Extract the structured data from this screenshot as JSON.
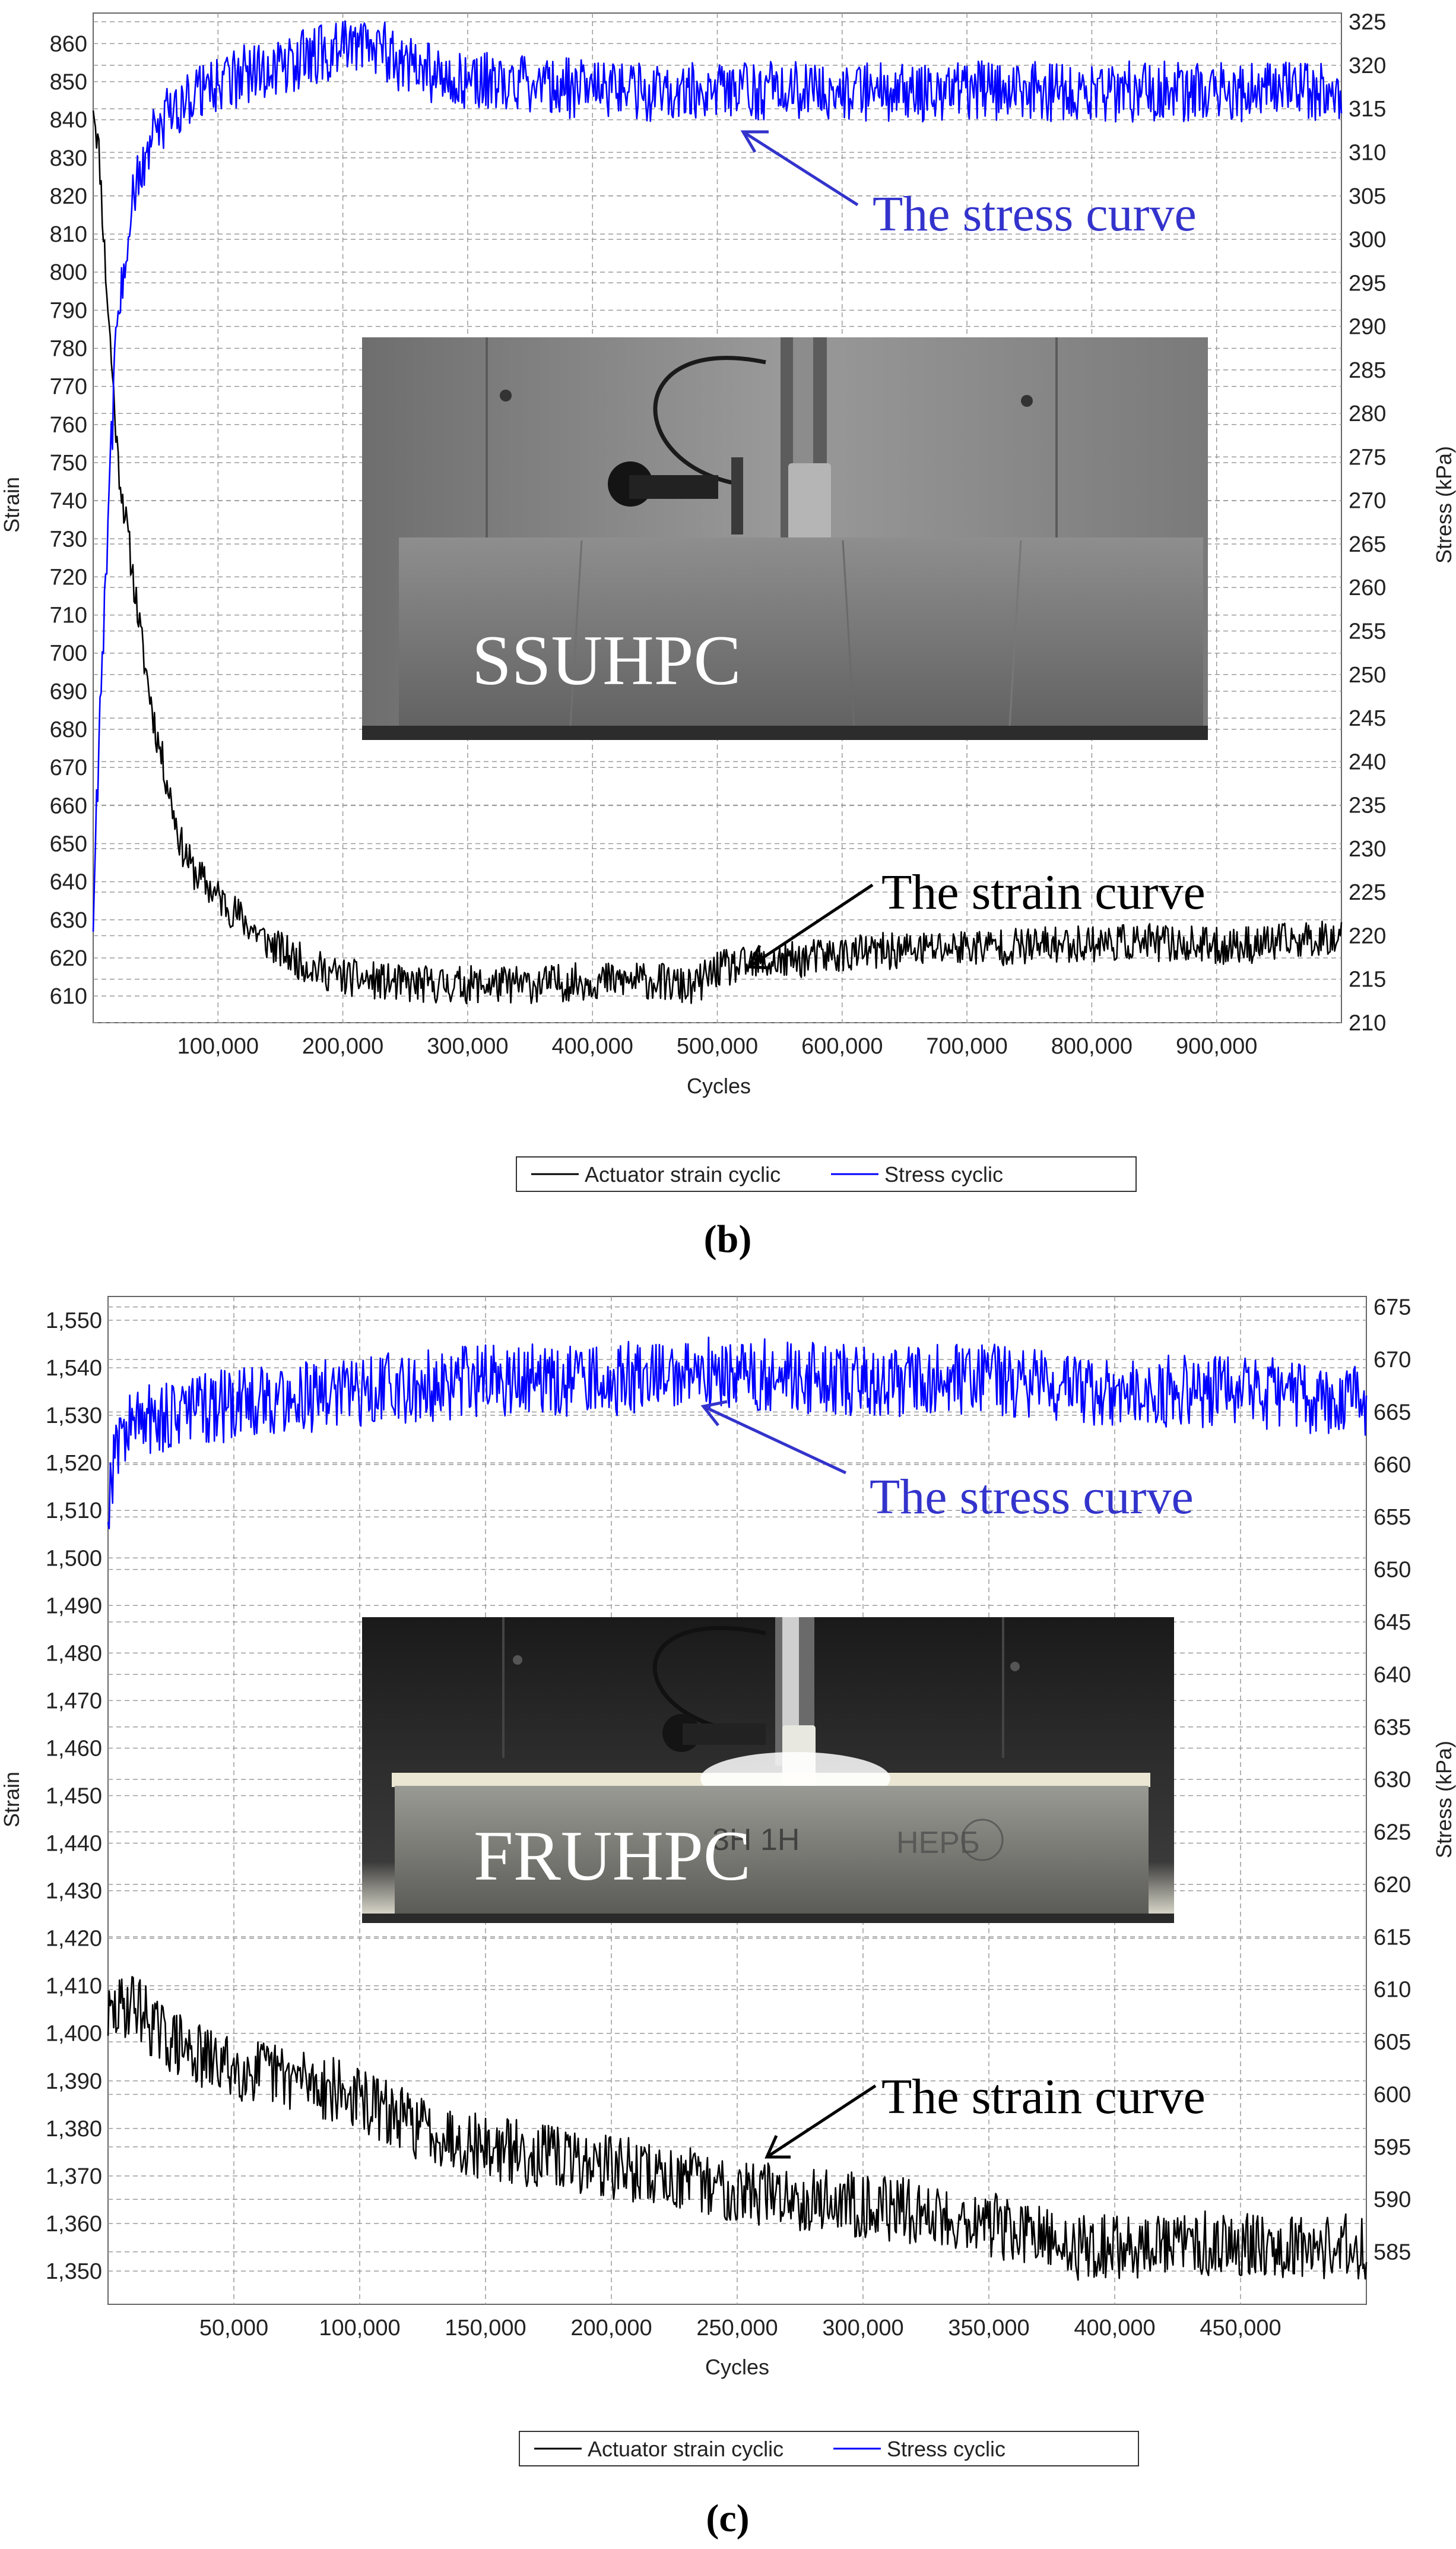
{
  "chart_data": [
    {
      "type": "line",
      "caption": "(b)",
      "xlabel": "Cycles",
      "ylabel_left": "Strain",
      "ylabel_right": "Stress (kPa)",
      "xlim": [
        0,
        1000000
      ],
      "ylim_left": [
        603,
        868
      ],
      "ylim_right": [
        210,
        326
      ],
      "x_ticks": [
        "100,000",
        "200,000",
        "300,000",
        "400,000",
        "500,000",
        "600,000",
        "700,000",
        "800,000",
        "900,000"
      ],
      "x_tick_values": [
        100000,
        200000,
        300000,
        400000,
        500000,
        600000,
        700000,
        800000,
        900000
      ],
      "y_left_ticks": [
        610,
        620,
        630,
        640,
        650,
        660,
        670,
        680,
        690,
        700,
        710,
        720,
        730,
        740,
        750,
        760,
        770,
        780,
        790,
        800,
        810,
        820,
        830,
        840,
        850,
        860
      ],
      "y_right_ticks": [
        210,
        215,
        220,
        225,
        230,
        235,
        240,
        245,
        250,
        255,
        260,
        265,
        270,
        275,
        280,
        285,
        290,
        295,
        300,
        305,
        310,
        315,
        320,
        325
      ],
      "grid": true,
      "legend": [
        "Actuator strain cyclic",
        "Stress cyclic"
      ],
      "legend_position": "bottom",
      "photo_label": "SSUHPC",
      "annotations": [
        {
          "text": "The stress curve",
          "color": "#3333cc"
        },
        {
          "text": "The strain curve",
          "color": "#000000"
        }
      ],
      "series": [
        {
          "name": "Actuator strain cyclic",
          "axis": "left",
          "color": "#000000",
          "x": [
            0,
            5000,
            10000,
            15000,
            20000,
            30000,
            40000,
            50000,
            60000,
            70000,
            80000,
            100000,
            120000,
            140000,
            160000,
            180000,
            200000,
            250000,
            300000,
            350000,
            400000,
            450000,
            480000,
            500000,
            550000,
            600000,
            650000,
            700000,
            750000,
            800000,
            850000,
            900000,
            950000,
            1000000
          ],
          "y": [
            845,
            830,
            800,
            775,
            750,
            725,
            700,
            680,
            665,
            650,
            643,
            636,
            630,
            624,
            620,
            617,
            615,
            613,
            613,
            613,
            614,
            614,
            612,
            617,
            619,
            621,
            622,
            623,
            623,
            624,
            624,
            623,
            624,
            626
          ],
          "noise": 5
        },
        {
          "name": "Stress cyclic",
          "axis": "right",
          "color": "#0000ff",
          "x": [
            0,
            5000,
            10000,
            15000,
            20000,
            30000,
            40000,
            50000,
            60000,
            80000,
            100000,
            150000,
            200000,
            220000,
            250000,
            300000,
            350000,
            400000,
            450000,
            500000,
            600000,
            700000,
            800000,
            900000,
            1000000
          ],
          "y": [
            222,
            245,
            262,
            278,
            292,
            303,
            309,
            312,
            314,
            317,
            318,
            320,
            322,
            323,
            320,
            318,
            318,
            317,
            317,
            317,
            317,
            317,
            317,
            317,
            317
          ],
          "noise": 3.5
        }
      ]
    },
    {
      "type": "line",
      "caption": "(c)",
      "xlabel": "Cycles",
      "ylabel_left": "Strain",
      "ylabel_right": "Stress (kPa)",
      "xlim": [
        0,
        500000
      ],
      "ylim_left": [
        1343,
        1555
      ],
      "ylim_right": [
        580,
        676
      ],
      "x_ticks": [
        "50,000",
        "100,000",
        "150,000",
        "200,000",
        "250,000",
        "300,000",
        "350,000",
        "400,000",
        "450,000"
      ],
      "x_tick_values": [
        50000,
        100000,
        150000,
        200000,
        250000,
        300000,
        350000,
        400000,
        450000
      ],
      "y_left_ticks": [
        "1,350",
        "1,360",
        "1,370",
        "1,380",
        "1,390",
        "1,400",
        "1,410",
        "1,420",
        "1,430",
        "1,440",
        "1,450",
        "1,460",
        "1,470",
        "1,480",
        "1,490",
        "1,500",
        "1,510",
        "1,520",
        "1,530",
        "1,540",
        "1,550"
      ],
      "y_left_tick_values": [
        1350,
        1360,
        1370,
        1380,
        1390,
        1400,
        1410,
        1420,
        1430,
        1440,
        1450,
        1460,
        1470,
        1480,
        1490,
        1500,
        1510,
        1520,
        1530,
        1540,
        1550
      ],
      "y_right_ticks": [
        585,
        590,
        595,
        600,
        605,
        610,
        615,
        620,
        625,
        630,
        635,
        640,
        645,
        650,
        655,
        660,
        665,
        670,
        675
      ],
      "grid": true,
      "legend": [
        "Actuator strain cyclic",
        "Stress cyclic"
      ],
      "legend_position": "bottom",
      "photo_label": "FRUHPC",
      "annotations": [
        {
          "text": "The stress curve",
          "color": "#3333cc"
        },
        {
          "text": "The strain curve",
          "color": "#000000"
        }
      ],
      "series": [
        {
          "name": "Actuator strain cyclic",
          "axis": "left",
          "color": "#000000",
          "x": [
            0,
            10000,
            20000,
            40000,
            60000,
            80000,
            100000,
            120000,
            150000,
            200000,
            250000,
            300000,
            350000,
            380000,
            400000,
            450000,
            500000
          ],
          "y": [
            1403,
            1407,
            1400,
            1394,
            1392,
            1390,
            1386,
            1381,
            1376,
            1372,
            1367,
            1364,
            1360,
            1355,
            1355,
            1356,
            1355
          ],
          "noise": 7
        },
        {
          "name": "Stress cyclic",
          "axis": "right",
          "color": "#0000ff",
          "x": [
            0,
            3000,
            10000,
            30000,
            60000,
            100000,
            150000,
            200000,
            230000,
            300000,
            350000,
            400000,
            450000,
            500000
          ],
          "y": [
            656,
            662,
            664,
            665,
            666,
            667,
            668,
            668,
            669,
            668,
            668,
            667,
            667,
            666
          ],
          "noise": 3.5
        }
      ]
    }
  ]
}
